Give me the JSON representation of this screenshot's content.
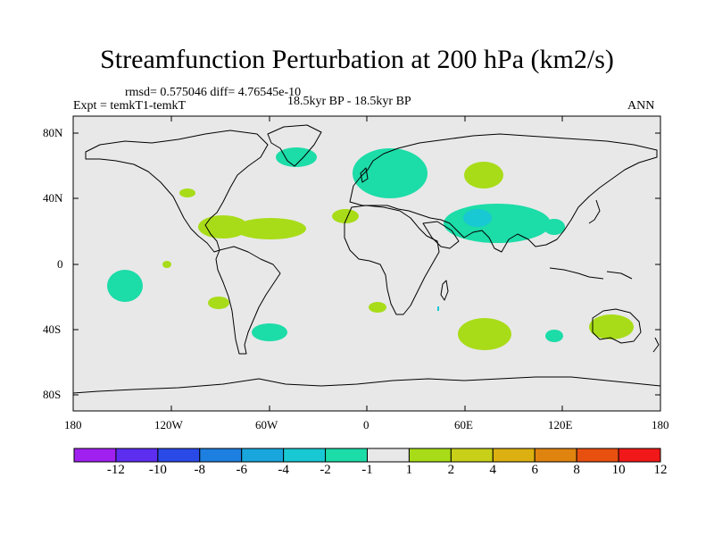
{
  "title": "Streamfunction Perturbation at 200 hPa (km2/s)",
  "stats": "rmsd= 0.575046 diff= 4.76545e-10",
  "expt": "Expt = temkT1-temkT",
  "period": "18.5kyr BP - 18.5kyr BP",
  "season": "ANN",
  "lat_ticks": [
    "80N",
    "40N",
    "0",
    "40S",
    "80S"
  ],
  "lon_ticks": [
    "180",
    "120W",
    "60W",
    "0",
    "60E",
    "120E",
    "180"
  ],
  "colorbar": {
    "labels": [
      "-12",
      "-10",
      "-8",
      "-6",
      "-4",
      "-2",
      "-1",
      "1",
      "2",
      "4",
      "6",
      "8",
      "10",
      "12"
    ],
    "colors": [
      "#a020f0",
      "#5d2df0",
      "#2a4ae8",
      "#1d7fe0",
      "#18a6dc",
      "#18c8d2",
      "#1cdca8",
      "#e8e8e8",
      "#a8dc18",
      "#c8d018",
      "#dcb010",
      "#e08410",
      "#e85010",
      "#f01818"
    ]
  },
  "colors": {
    "ocean": "#e8e8e8",
    "pos2": "#a8dc18",
    "neg2": "#1cdca8",
    "neg4": "#18c8d2"
  },
  "anomalies": [
    {
      "label": "Europe/Scandinavia",
      "sign": -1
    },
    {
      "label": "North Atlantic",
      "sign": 1
    },
    {
      "label": "Arabia/India",
      "sign": -1
    },
    {
      "label": "South Indian Ocean",
      "sign": 1
    },
    {
      "label": "Southeast Pacific",
      "sign": -1
    },
    {
      "label": "Australia",
      "sign": 1
    }
  ]
}
